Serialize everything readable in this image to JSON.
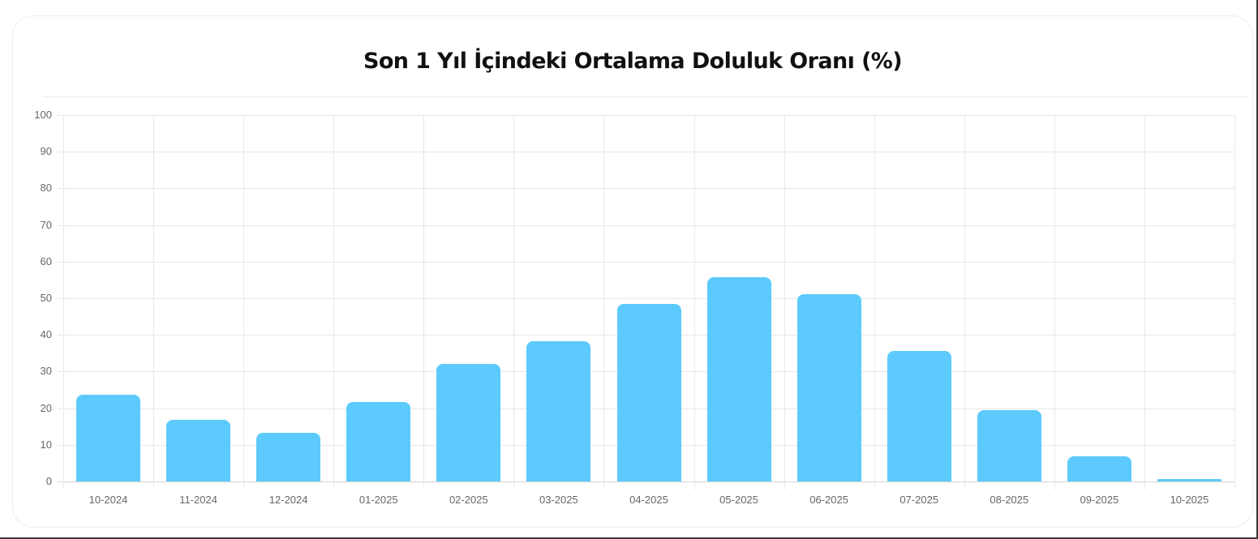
{
  "card": {
    "title": "Son 1 Yıl İçindeki Ortalama Doluluk Oranı (%)"
  },
  "colors": {
    "bar": "#5ccafc",
    "grid": "#e8e8e8",
    "axis_text": "#666666",
    "title": "#111111"
  },
  "chart_data": {
    "type": "bar",
    "title": "Son 1 Yıl İçindeki Ortalama Doluluk Oranı (%)",
    "xlabel": "",
    "ylabel": "",
    "ylim": [
      0,
      100
    ],
    "yticks": [
      "0",
      "10",
      "20",
      "30",
      "40",
      "50",
      "60",
      "70",
      "80",
      "90",
      "100"
    ],
    "grid": true,
    "legend": "none",
    "categories": [
      "10-2024",
      "11-2024",
      "12-2024",
      "01-2025",
      "02-2025",
      "03-2025",
      "04-2025",
      "05-2025",
      "06-2025",
      "07-2025",
      "08-2025",
      "09-2025",
      "10-2025"
    ],
    "values": [
      23.6,
      16.9,
      13.3,
      21.7,
      32.1,
      38.2,
      48.5,
      55.7,
      51.0,
      35.6,
      19.5,
      6.9,
      0.7
    ]
  }
}
